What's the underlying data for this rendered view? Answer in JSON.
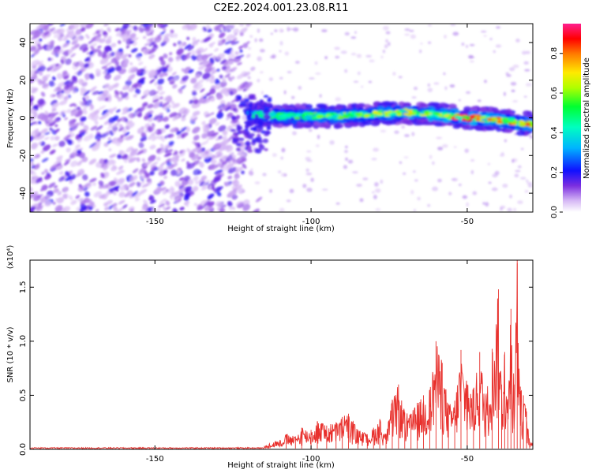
{
  "figure": {
    "title": "C2E2.2024.001.23.08.R11"
  },
  "chart_data": [
    {
      "type": "heatmap",
      "title": "C2E2.2024.001.23.08.R11",
      "xlabel": "Height of straight line (km)",
      "ylabel": "Frequency (Hz)",
      "xlim": [
        -190,
        -29
      ],
      "ylim": [
        -50,
        50
      ],
      "x_ticks": [
        -150,
        -100,
        -50
      ],
      "y_ticks": [
        -40,
        -20,
        0,
        20,
        40
      ],
      "description_of_bands": {
        "noise_region_x": [
          -190,
          -120
        ],
        "signal_band_x": [
          -120,
          -29
        ],
        "signal_center_frequency_hz": [
          [
            -118,
            2
          ],
          [
            -110,
            1
          ],
          [
            -100,
            1
          ],
          [
            -90,
            1
          ],
          [
            -80,
            2
          ],
          [
            -70,
            3
          ],
          [
            -60,
            2
          ],
          [
            -50,
            0
          ],
          [
            -40,
            -1
          ],
          [
            -32,
            -3
          ]
        ]
      },
      "colorbar": {
        "label": "Normalized spectral amplitude",
        "ticks": [
          0.0,
          0.2,
          0.4,
          0.6,
          0.8
        ],
        "range": [
          0,
          0.95
        ],
        "colors": [
          "#ffffff",
          "#6a0dcd",
          "#0000ff",
          "#00c8ff",
          "#00ff40",
          "#c8ff00",
          "#ffe000",
          "#ff8000",
          "#ff0000",
          "#ff1493"
        ]
      }
    },
    {
      "type": "line",
      "xlabel": "Height of straight line (km)",
      "ylabel": "SNR (10 * v/v)",
      "y_multiplier": "(x10⁴)",
      "xlim": [
        -190,
        -29
      ],
      "ylim": [
        0,
        1.75
      ],
      "x_ticks": [
        -150,
        -100,
        -50
      ],
      "y_ticks": [
        0.0,
        0.5,
        1.0,
        1.5
      ],
      "series": [
        {
          "color": "#e8302c",
          "x": [
            -190,
            -180,
            -170,
            -160,
            -150,
            -140,
            -130,
            -120,
            -115,
            -112,
            -110,
            -108,
            -105,
            -103,
            -100,
            -98,
            -95,
            -92,
            -90,
            -88,
            -85,
            -82,
            -80,
            -78,
            -76,
            -74,
            -72,
            -70,
            -68,
            -66,
            -64,
            -62,
            -60,
            -58,
            -56,
            -54,
            -52,
            -50,
            -48,
            -46,
            -44,
            -42,
            -40,
            -39,
            -38,
            -37,
            -36,
            -35,
            -34,
            -33,
            -32,
            -31,
            -30,
            -29
          ],
          "y": [
            0.01,
            0.01,
            0.01,
            0.01,
            0.01,
            0.01,
            0.01,
            0.02,
            0.03,
            0.07,
            0.09,
            0.14,
            0.12,
            0.2,
            0.18,
            0.26,
            0.22,
            0.25,
            0.3,
            0.33,
            0.18,
            0.14,
            0.2,
            0.28,
            0.14,
            0.46,
            0.6,
            0.34,
            0.33,
            0.43,
            0.5,
            0.55,
            1.0,
            0.8,
            0.42,
            0.45,
            0.92,
            0.6,
            0.55,
            0.9,
            0.5,
            0.93,
            1.48,
            0.6,
            0.9,
            0.44,
            1.3,
            0.6,
            1.75,
            0.58,
            0.5,
            0.35,
            0.05,
            0.07
          ]
        }
      ]
    }
  ]
}
